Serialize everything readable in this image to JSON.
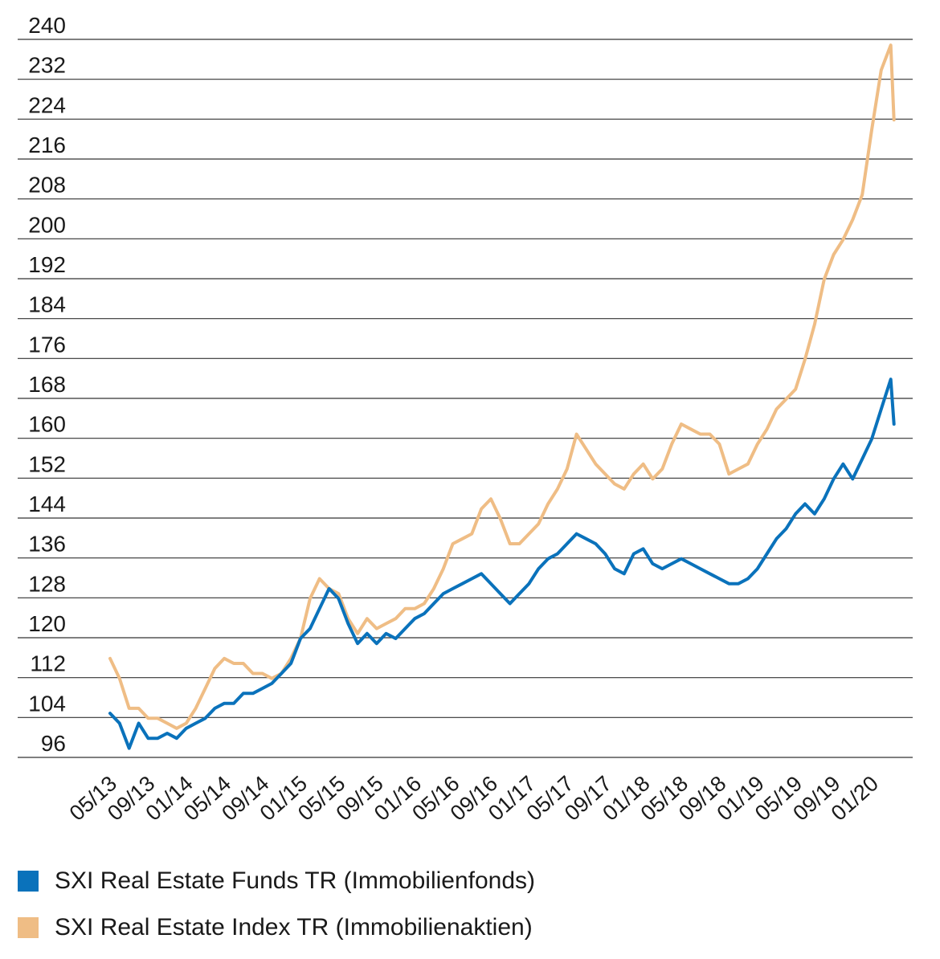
{
  "chart_data": {
    "type": "line",
    "title": "",
    "xlabel": "",
    "ylabel": "",
    "ylim": [
      96,
      240
    ],
    "yticks": [
      96,
      104,
      112,
      120,
      128,
      136,
      144,
      152,
      160,
      168,
      176,
      184,
      192,
      200,
      208,
      216,
      224,
      232,
      240
    ],
    "x_labels": [
      "05/13",
      "09/13",
      "01/14",
      "05/14",
      "09/14",
      "01/15",
      "05/15",
      "09/15",
      "01/16",
      "05/16",
      "09/16",
      "01/17",
      "05/17",
      "09/17",
      "01/18",
      "05/18",
      "09/18",
      "01/19",
      "05/19",
      "09/19",
      "01/20"
    ],
    "grid": "horizontal",
    "legend_position": "bottom-left",
    "series": [
      {
        "name": "SXI Real Estate Funds TR (Immobilienfonds)",
        "color": "#0a72bb",
        "points": [
          [
            "05/13",
            105
          ],
          [
            "06/13",
            103
          ],
          [
            "07/13",
            98
          ],
          [
            "08/13",
            103
          ],
          [
            "09/13",
            100
          ],
          [
            "10/13",
            100
          ],
          [
            "11/13",
            101
          ],
          [
            "12/13",
            100
          ],
          [
            "01/14",
            102
          ],
          [
            "02/14",
            103
          ],
          [
            "03/14",
            104
          ],
          [
            "04/14",
            106
          ],
          [
            "05/14",
            107
          ],
          [
            "06/14",
            107
          ],
          [
            "07/14",
            109
          ],
          [
            "08/14",
            109
          ],
          [
            "09/14",
            110
          ],
          [
            "10/14",
            111
          ],
          [
            "11/14",
            113
          ],
          [
            "12/14",
            115
          ],
          [
            "01/15",
            120
          ],
          [
            "02/15",
            122
          ],
          [
            "03/15",
            126
          ],
          [
            "04/15",
            130
          ],
          [
            "05/15",
            128
          ],
          [
            "06/15",
            123
          ],
          [
            "07/15",
            119
          ],
          [
            "08/15",
            121
          ],
          [
            "09/15",
            119
          ],
          [
            "10/15",
            121
          ],
          [
            "11/15",
            120
          ],
          [
            "12/15",
            122
          ],
          [
            "01/16",
            124
          ],
          [
            "02/16",
            125
          ],
          [
            "03/16",
            127
          ],
          [
            "04/16",
            129
          ],
          [
            "05/16",
            130
          ],
          [
            "06/16",
            131
          ],
          [
            "07/16",
            132
          ],
          [
            "08/16",
            133
          ],
          [
            "09/16",
            131
          ],
          [
            "10/16",
            129
          ],
          [
            "11/16",
            127
          ],
          [
            "12/16",
            129
          ],
          [
            "01/17",
            131
          ],
          [
            "02/17",
            134
          ],
          [
            "03/17",
            136
          ],
          [
            "04/17",
            137
          ],
          [
            "05/17",
            139
          ],
          [
            "06/17",
            141
          ],
          [
            "07/17",
            140
          ],
          [
            "08/17",
            139
          ],
          [
            "09/17",
            137
          ],
          [
            "10/17",
            134
          ],
          [
            "11/17",
            133
          ],
          [
            "12/17",
            137
          ],
          [
            "01/18",
            138
          ],
          [
            "02/18",
            135
          ],
          [
            "03/18",
            134
          ],
          [
            "04/18",
            135
          ],
          [
            "05/18",
            136
          ],
          [
            "06/18",
            135
          ],
          [
            "07/18",
            134
          ],
          [
            "08/18",
            133
          ],
          [
            "09/18",
            132
          ],
          [
            "10/18",
            131
          ],
          [
            "11/18",
            131
          ],
          [
            "12/18",
            132
          ],
          [
            "01/19",
            134
          ],
          [
            "02/19",
            137
          ],
          [
            "03/19",
            140
          ],
          [
            "04/19",
            142
          ],
          [
            "05/19",
            145
          ],
          [
            "06/19",
            147
          ],
          [
            "07/19",
            145
          ],
          [
            "08/19",
            148
          ],
          [
            "09/19",
            152
          ],
          [
            "10/19",
            155
          ],
          [
            "11/19",
            152
          ],
          [
            "12/19",
            156
          ],
          [
            "01/20",
            160
          ],
          [
            "02/20",
            166
          ],
          [
            "03/20",
            172
          ],
          [
            "03/20",
            163
          ]
        ]
      },
      {
        "name": "SXI Real Estate Index TR (Immobilienaktien)",
        "color": "#efbd85",
        "points": [
          [
            "05/13",
            116
          ],
          [
            "06/13",
            112
          ],
          [
            "07/13",
            106
          ],
          [
            "08/13",
            106
          ],
          [
            "09/13",
            104
          ],
          [
            "10/13",
            104
          ],
          [
            "11/13",
            103
          ],
          [
            "12/13",
            102
          ],
          [
            "01/14",
            103
          ],
          [
            "02/14",
            106
          ],
          [
            "03/14",
            110
          ],
          [
            "04/14",
            114
          ],
          [
            "05/14",
            116
          ],
          [
            "06/14",
            115
          ],
          [
            "07/14",
            115
          ],
          [
            "08/14",
            113
          ],
          [
            "09/14",
            113
          ],
          [
            "10/14",
            112
          ],
          [
            "11/14",
            113
          ],
          [
            "12/14",
            116
          ],
          [
            "01/15",
            120
          ],
          [
            "02/15",
            128
          ],
          [
            "03/15",
            132
          ],
          [
            "04/15",
            130
          ],
          [
            "05/15",
            129
          ],
          [
            "06/15",
            124
          ],
          [
            "07/15",
            121
          ],
          [
            "08/15",
            124
          ],
          [
            "09/15",
            122
          ],
          [
            "10/15",
            123
          ],
          [
            "11/15",
            124
          ],
          [
            "12/15",
            126
          ],
          [
            "01/16",
            126
          ],
          [
            "02/16",
            127
          ],
          [
            "03/16",
            130
          ],
          [
            "04/16",
            134
          ],
          [
            "05/16",
            139
          ],
          [
            "06/16",
            140
          ],
          [
            "07/16",
            141
          ],
          [
            "08/16",
            146
          ],
          [
            "09/16",
            148
          ],
          [
            "10/16",
            144
          ],
          [
            "11/16",
            139
          ],
          [
            "12/16",
            139
          ],
          [
            "01/17",
            141
          ],
          [
            "02/17",
            143
          ],
          [
            "03/17",
            147
          ],
          [
            "04/17",
            150
          ],
          [
            "05/17",
            154
          ],
          [
            "06/17",
            161
          ],
          [
            "07/17",
            158
          ],
          [
            "08/17",
            155
          ],
          [
            "09/17",
            153
          ],
          [
            "10/17",
            151
          ],
          [
            "11/17",
            150
          ],
          [
            "12/17",
            153
          ],
          [
            "01/18",
            155
          ],
          [
            "02/18",
            152
          ],
          [
            "03/18",
            154
          ],
          [
            "04/18",
            159
          ],
          [
            "05/18",
            163
          ],
          [
            "06/18",
            162
          ],
          [
            "07/18",
            161
          ],
          [
            "08/18",
            161
          ],
          [
            "09/18",
            159
          ],
          [
            "10/18",
            153
          ],
          [
            "11/18",
            154
          ],
          [
            "12/18",
            155
          ],
          [
            "01/19",
            159
          ],
          [
            "02/19",
            162
          ],
          [
            "03/19",
            166
          ],
          [
            "04/19",
            168
          ],
          [
            "05/19",
            170
          ],
          [
            "06/19",
            176
          ],
          [
            "07/19",
            183
          ],
          [
            "08/19",
            192
          ],
          [
            "09/19",
            197
          ],
          [
            "10/19",
            200
          ],
          [
            "11/19",
            204
          ],
          [
            "12/19",
            209
          ],
          [
            "01/20",
            222
          ],
          [
            "02/20",
            234
          ],
          [
            "03/20",
            239
          ],
          [
            "03/20",
            224
          ]
        ]
      }
    ]
  }
}
